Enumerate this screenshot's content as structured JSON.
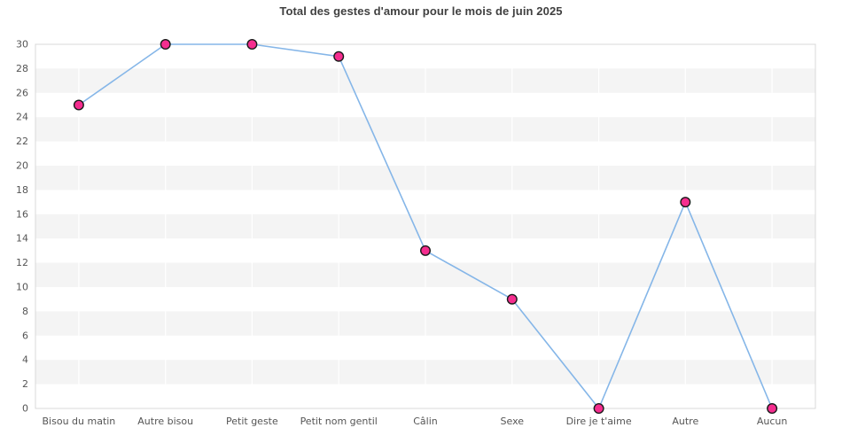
{
  "chart_data": {
    "type": "line",
    "title": "Total des gestes d'amour pour le mois de juin 2025",
    "categories": [
      "Bisou du matin",
      "Autre bisou",
      "Petit geste",
      "Petit nom gentil",
      "Câlin",
      "Sexe",
      "Dire je t'aime",
      "Autre",
      "Aucun"
    ],
    "values": [
      25,
      30,
      30,
      29,
      13,
      9,
      0,
      17,
      0
    ],
    "xlabel": "",
    "ylabel": "",
    "ylim": [
      0,
      30
    ],
    "ytick_step": 2,
    "ytick_labels": [
      "0",
      "2",
      "4",
      "6",
      "8",
      "10",
      "12",
      "14",
      "16",
      "18",
      "20",
      "22",
      "24",
      "26",
      "28",
      "30"
    ],
    "legend": "none",
    "grid": "alternating-horizontal-bands-with-white-category-gridlines",
    "colors": {
      "line": "#85b6e8",
      "marker_fill": "#f52d8f",
      "marker_stroke": "#1a1a1a",
      "band": "#f4f4f4",
      "plot_border": "#d9d9d9",
      "title_text": "#404040",
      "tick_text": "#555555",
      "background": "#ffffff"
    }
  }
}
